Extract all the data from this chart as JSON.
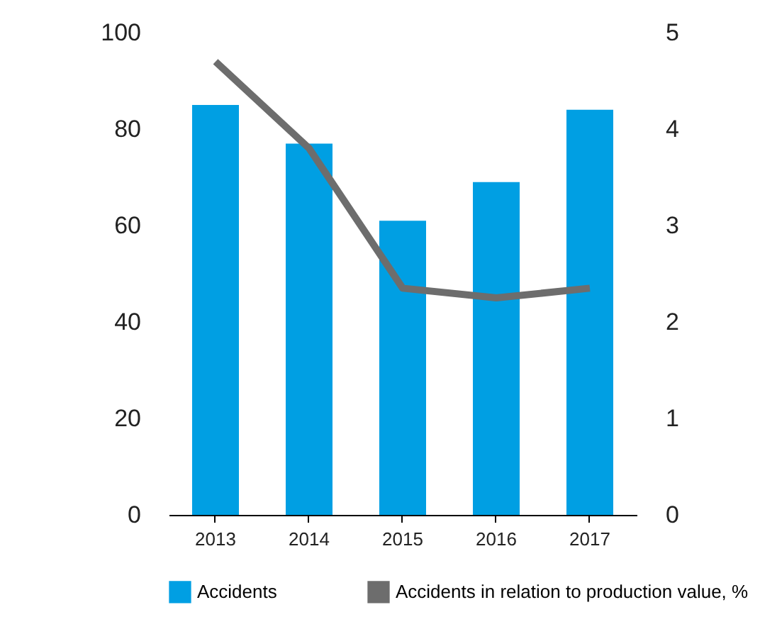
{
  "chart_data": {
    "type": "bar",
    "categories": [
      "2013",
      "2014",
      "2015",
      "2016",
      "2017"
    ],
    "series": [
      {
        "name": "Accidents",
        "color": "#009fe3",
        "values": [
          85,
          77,
          61,
          69,
          84
        ]
      },
      {
        "name": "Accidents in relation to production value, %",
        "type": "line",
        "axis": "y2",
        "color": "#6d6d6d",
        "values": [
          4.7,
          3.8,
          2.35,
          2.25,
          2.35
        ]
      }
    ],
    "ylim": [
      0,
      100
    ],
    "yticks": [
      0,
      20,
      40,
      60,
      80,
      100
    ],
    "y2lim": [
      0,
      5
    ],
    "y2ticks": [
      0,
      1,
      2,
      3,
      4,
      5
    ],
    "grid": false,
    "legend": "bottom",
    "marker": "none",
    "line_style": "solid"
  }
}
